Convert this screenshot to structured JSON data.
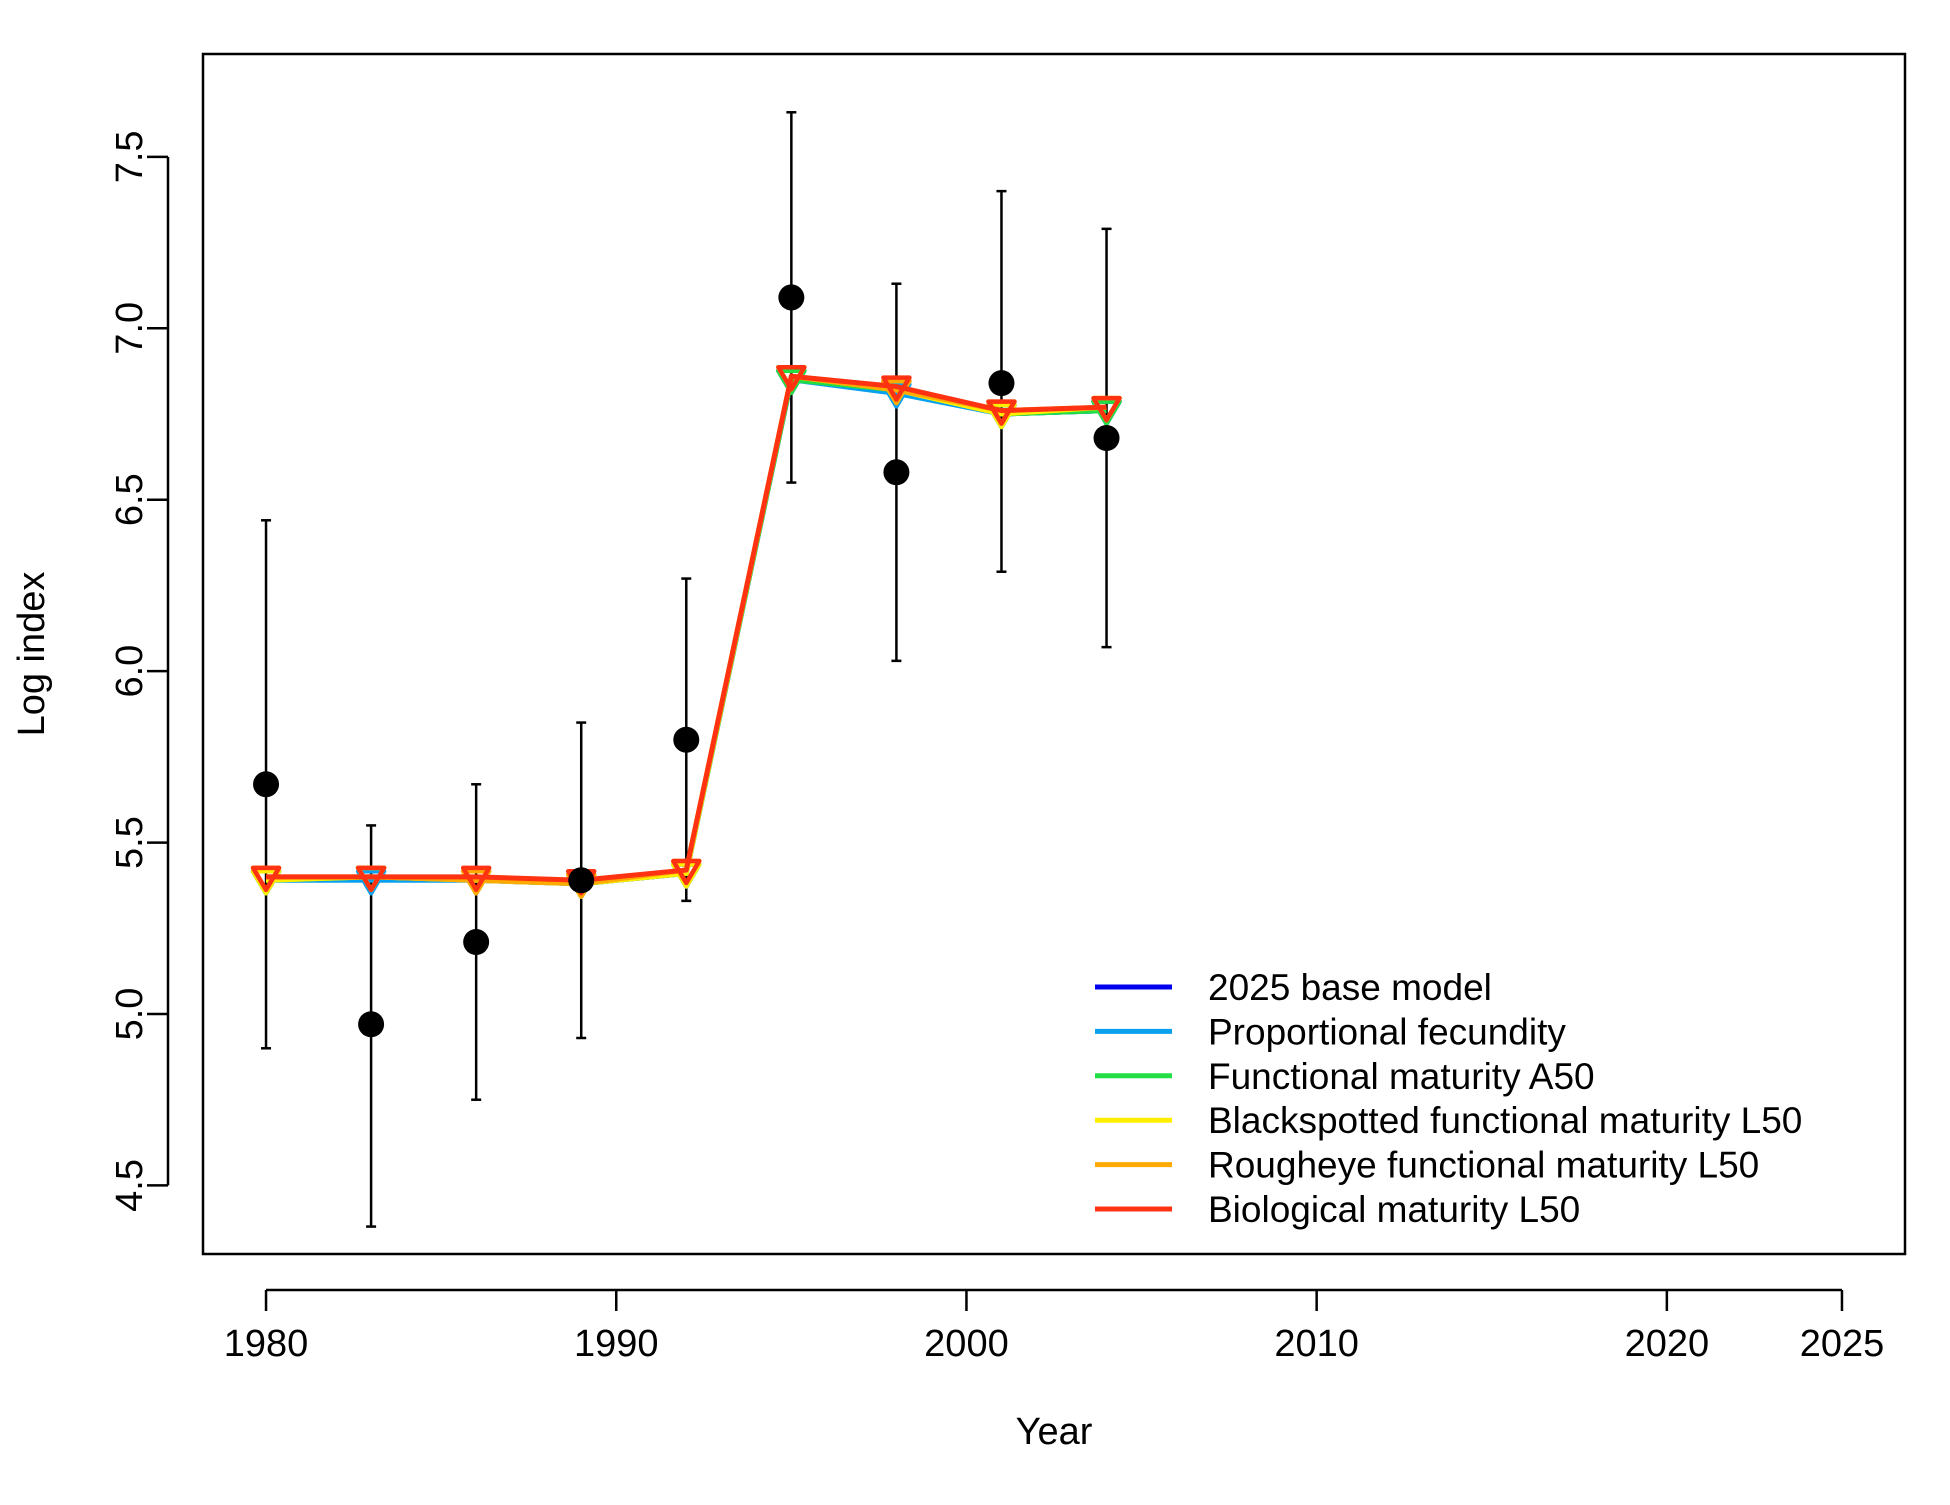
{
  "chart_data": {
    "type": "line",
    "xlabel": "Year",
    "ylabel": "Log index",
    "xlim": [
      1978.2,
      2026.8
    ],
    "ylim": [
      4.3,
      7.8
    ],
    "x_ticks": [
      1980,
      1990,
      2000,
      2010,
      2020,
      2025
    ],
    "x_tick_labels": [
      "1980",
      "1990",
      "2000",
      "2010",
      "2020",
      "2025"
    ],
    "y_ticks": [
      4.5,
      5.0,
      5.5,
      6.0,
      6.5,
      7.0,
      7.5
    ],
    "y_tick_labels": [
      "4.5",
      "5.0",
      "5.5",
      "6.0",
      "6.5",
      "7.0",
      "7.5"
    ],
    "grid": false,
    "legend_position": "bottom-right",
    "observed": {
      "x": [
        1980,
        1983,
        1986,
        1989,
        1992,
        1995,
        1998,
        2001,
        2004
      ],
      "y": [
        5.67,
        4.97,
        5.21,
        5.39,
        5.8,
        7.09,
        6.58,
        6.84,
        6.68
      ],
      "lower": [
        4.9,
        4.38,
        4.75,
        4.93,
        5.33,
        6.55,
        6.03,
        6.29,
        6.07
      ],
      "upper": [
        6.44,
        5.55,
        5.67,
        5.85,
        6.27,
        7.63,
        7.13,
        7.4,
        7.29
      ],
      "color": "#000000"
    },
    "series": [
      {
        "name": "2025 base model",
        "color": "#0000ee",
        "x": [
          1980,
          1983,
          1986,
          1989,
          1992,
          1995,
          1998,
          2001,
          2004
        ],
        "values": [
          5.39,
          5.4,
          5.39,
          5.38,
          5.41,
          6.85,
          6.82,
          6.75,
          6.76
        ]
      },
      {
        "name": "Proportional fecundity",
        "color": "#0aa0f0",
        "x": [
          1980,
          1983,
          1986,
          1989,
          1992,
          1995,
          1998,
          2001,
          2004
        ],
        "values": [
          5.39,
          5.39,
          5.39,
          5.38,
          5.41,
          6.85,
          6.81,
          6.75,
          6.76
        ]
      },
      {
        "name": "Functional maturity A50",
        "color": "#22dd44",
        "x": [
          1980,
          1983,
          1986,
          1989,
          1992,
          1995,
          1998,
          2001,
          2004
        ],
        "values": [
          5.39,
          5.4,
          5.39,
          5.38,
          5.41,
          6.85,
          6.82,
          6.75,
          6.76
        ]
      },
      {
        "name": "Blackspotted functional maturity L50",
        "color": "#ffee00",
        "x": [
          1980,
          1983,
          1986,
          1989,
          1992,
          1995,
          1998,
          2001,
          2004
        ],
        "values": [
          5.39,
          5.4,
          5.39,
          5.38,
          5.41,
          6.86,
          6.82,
          6.75,
          6.77
        ]
      },
      {
        "name": "Rougheye functional maturity L50",
        "color": "#ffaa00",
        "x": [
          1980,
          1983,
          1986,
          1989,
          1992,
          1995,
          1998,
          2001,
          2004
        ],
        "values": [
          5.4,
          5.4,
          5.39,
          5.38,
          5.42,
          6.86,
          6.82,
          6.76,
          6.77
        ]
      },
      {
        "name": "Biological maturity L50",
        "color": "#ff3311",
        "x": [
          1980,
          1983,
          1986,
          1989,
          1992,
          1995,
          1998,
          2001,
          2004
        ],
        "values": [
          5.4,
          5.4,
          5.4,
          5.39,
          5.42,
          6.86,
          6.83,
          6.76,
          6.77
        ]
      }
    ]
  }
}
